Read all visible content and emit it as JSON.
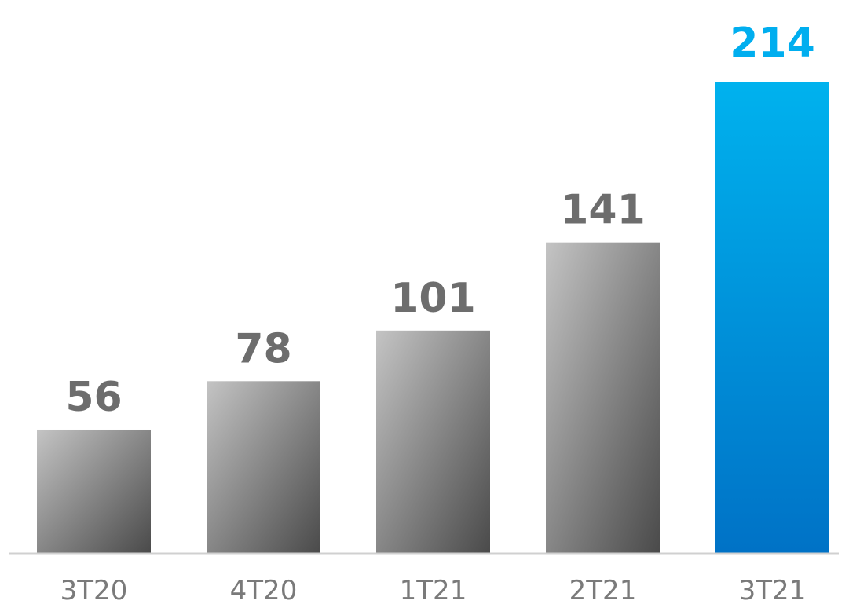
{
  "chart_data": {
    "type": "bar",
    "categories": [
      "3T20",
      "4T20",
      "1T21",
      "2T21",
      "3T21"
    ],
    "values": [
      56,
      78,
      101,
      141,
      214
    ],
    "data_labels": [
      "56",
      "78",
      "101",
      "141",
      "214"
    ],
    "highlight_index": 4,
    "ylim": [
      0,
      214
    ],
    "grid": false,
    "title": "",
    "xlabel": "",
    "ylabel": ""
  },
  "colors": {
    "bar_gray_light": "#c4c4c4",
    "bar_gray_dark": "#4a4a4a",
    "bar_highlight_top": "#00b2ee",
    "bar_highlight_bottom": "#0072c6",
    "label_gray": "#6d6d6d",
    "label_highlight": "#00aeef",
    "axis_line": "#d0d0d0",
    "category_text": "#7a7a7a"
  }
}
